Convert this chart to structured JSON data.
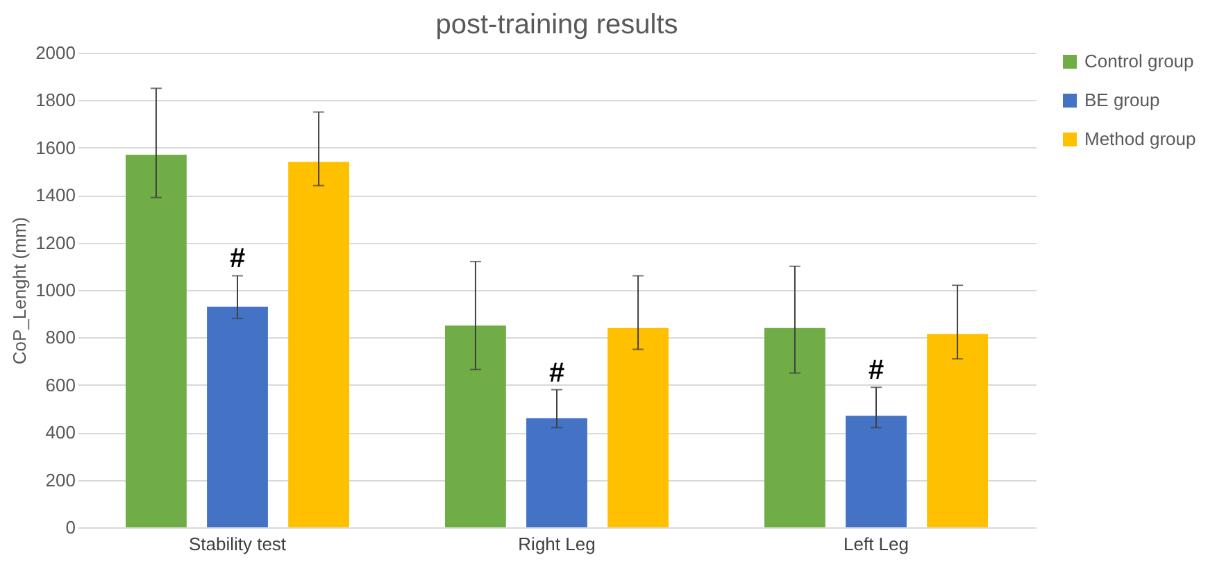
{
  "chart_data": {
    "type": "bar",
    "title": "post-training results",
    "ylabel": "CoP_Lenght (mm)",
    "categories": [
      "Stability test",
      "Right Leg",
      "Left Leg"
    ],
    "series": [
      {
        "name": "Control group",
        "color": "#70ad47",
        "values": [
          1570,
          850,
          840
        ],
        "errors": [
          [
            1390,
            1850
          ],
          [
            665,
            1120
          ],
          [
            650,
            1100
          ]
        ]
      },
      {
        "name": "BE group",
        "color": "#4472c4",
        "values": [
          930,
          460,
          470
        ],
        "errors": [
          [
            880,
            1060
          ],
          [
            420,
            580
          ],
          [
            420,
            590
          ]
        ]
      },
      {
        "name": "Method group",
        "color": "#ffc000",
        "values": [
          1540,
          840,
          815
        ],
        "errors": [
          [
            1440,
            1750
          ],
          [
            750,
            1060
          ],
          [
            710,
            1020
          ]
        ]
      }
    ],
    "ylim": [
      0,
      2000
    ],
    "yticks": [
      0,
      200,
      400,
      600,
      800,
      1000,
      1200,
      1400,
      1600,
      1800,
      2000
    ],
    "grid": "y",
    "legend": "right",
    "annotations": [
      {
        "text": "#",
        "x": "Stability test",
        "y": 1060
      },
      {
        "text": "#",
        "x": "Right Leg",
        "y": 580
      },
      {
        "text": "#",
        "x": "Left Leg",
        "y": 590
      }
    ]
  }
}
